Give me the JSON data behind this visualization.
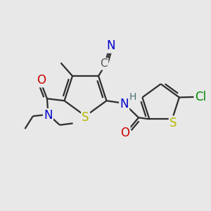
{
  "bg_color": "#e8e8e8",
  "bond_color": "#2d2d2d",
  "bond_width": 1.6,
  "atom_colors": {
    "S": "#b8b800",
    "N": "#0000cc",
    "O": "#cc0000",
    "C": "#555555",
    "Cl": "#008800",
    "H": "#4d7070"
  },
  "font_size_atom": 11,
  "font_size_small": 9
}
